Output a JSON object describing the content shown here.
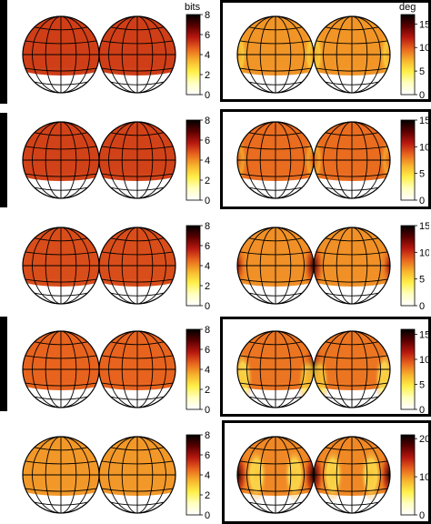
{
  "colors": {
    "colormap": [
      "#ffffff",
      "#ffffc0",
      "#fff04a",
      "#f7b42d",
      "#e8651e",
      "#b71810",
      "#5a0000",
      "#000000"
    ],
    "sphere_outline": "#000000",
    "frame": "#000000"
  },
  "chart_data": [
    {
      "type": "heatmap",
      "map": "sphere-pair",
      "panel": 1,
      "colorbar_unit": "bits",
      "ylim": [
        0,
        8
      ],
      "ticks": [
        0,
        2,
        4,
        6,
        8
      ],
      "fill_level": 5.0,
      "fill_range": [
        0.27,
        0.75
      ],
      "hotspots": []
    },
    {
      "type": "heatmap",
      "map": "sphere-pair",
      "panel": 2,
      "colorbar_unit": "deg",
      "ylim": [
        0,
        17
      ],
      "ticks": [
        0,
        5,
        10,
        15
      ],
      "fill_level": 2.6,
      "fill_range": [
        0.22,
        0.8
      ],
      "hotspots": [
        {
          "lon": 90,
          "lat": 0,
          "value": 8
        },
        {
          "lon": -90,
          "lat": 0,
          "value": 8
        }
      ]
    },
    {
      "type": "heatmap",
      "map": "sphere-pair",
      "panel": 3,
      "colorbar_unit": "",
      "ylim": [
        0,
        8
      ],
      "ticks": [
        0,
        2,
        4,
        6,
        8
      ],
      "fill_level": 4.9,
      "fill_range": [
        0.18,
        0.7
      ],
      "hotspots": []
    },
    {
      "type": "heatmap",
      "map": "sphere-pair",
      "panel": 4,
      "colorbar_unit": "",
      "ylim": [
        0,
        15
      ],
      "ticks": [
        0,
        5,
        10,
        15
      ],
      "fill_level": 3.2,
      "fill_range": [
        0.22,
        0.8
      ],
      "hotspots": [
        {
          "lon": 90,
          "lat": 0,
          "value": 9
        },
        {
          "lon": -90,
          "lat": 0,
          "value": 9
        }
      ]
    },
    {
      "type": "heatmap",
      "map": "sphere-pair",
      "panel": 5,
      "colorbar_unit": "",
      "ylim": [
        0,
        8
      ],
      "ticks": [
        0,
        2,
        4,
        6,
        8
      ],
      "fill_level": 4.6,
      "fill_range": [
        0.12,
        0.65
      ],
      "hotspots": []
    },
    {
      "type": "heatmap",
      "map": "sphere-pair",
      "panel": 6,
      "colorbar_unit": "",
      "ylim": [
        0,
        15
      ],
      "ticks": [
        0,
        5,
        10,
        15
      ],
      "fill_level": 2.4,
      "fill_range": [
        0.2,
        0.8
      ],
      "hotspots": [
        {
          "lon": 90,
          "lat": 0,
          "value": 14
        },
        {
          "lon": -90,
          "lat": 0,
          "value": 12
        }
      ]
    },
    {
      "type": "heatmap",
      "map": "sphere-pair",
      "panel": 7,
      "colorbar_unit": "",
      "ylim": [
        0,
        8
      ],
      "ticks": [
        0,
        2,
        4,
        6,
        8
      ],
      "fill_level": 4.0,
      "fill_range": [
        0.1,
        0.6
      ],
      "hotspots": []
    },
    {
      "type": "heatmap",
      "map": "sphere-pair",
      "panel": 8,
      "colorbar_unit": "",
      "ylim": [
        0,
        16
      ],
      "ticks": [
        0,
        5,
        10,
        15
      ],
      "fill_level": 3.2,
      "fill_range": [
        0.2,
        0.8
      ],
      "hotspots": [
        {
          "lon": 90,
          "lat": 0,
          "value": 16
        },
        {
          "lon": -90,
          "lat": 0,
          "value": 11
        },
        {
          "lon": 60,
          "lat": -20,
          "value": 7
        },
        {
          "lon": -120,
          "lat": -15,
          "value": 6
        }
      ]
    },
    {
      "type": "heatmap",
      "map": "sphere-pair",
      "panel": 9,
      "colorbar_unit": "",
      "ylim": [
        0,
        8
      ],
      "ticks": [
        0,
        2,
        4,
        6,
        8
      ],
      "fill_level": 2.6,
      "fill_range": [
        0.12,
        0.55
      ],
      "hotspots": []
    },
    {
      "type": "heatmap",
      "map": "sphere-pair",
      "panel": 10,
      "colorbar_unit": "",
      "ylim": [
        0,
        21
      ],
      "ticks": [
        0,
        10,
        20
      ],
      "fill_level": 3.6,
      "fill_range": [
        0.2,
        0.8
      ],
      "hotspots": [
        {
          "lon": 90,
          "lat": 0,
          "value": 21
        },
        {
          "lon": -90,
          "lat": 0,
          "value": 21
        },
        {
          "lon": 150,
          "lat": 0,
          "value": 8
        },
        {
          "lon": -30,
          "lat": 0,
          "value": 8
        }
      ]
    }
  ]
}
